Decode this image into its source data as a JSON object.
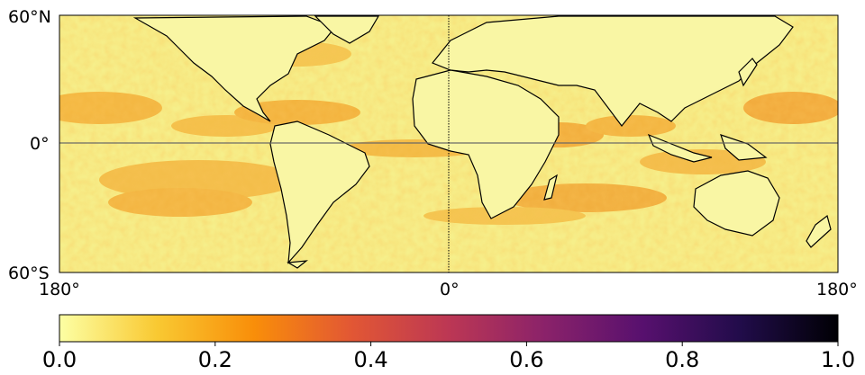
{
  "map": {
    "lat_labels": [
      "60°N",
      "0°",
      "60°S"
    ],
    "lon_labels": [
      "180°",
      "0°",
      "180°"
    ],
    "lat_range": [
      -60,
      60
    ],
    "lon_range": [
      -180,
      180
    ],
    "equator_line": true,
    "prime_meridian_line": true
  },
  "colorbar": {
    "colormap": "inferno_r",
    "range": [
      0.0,
      1.0
    ],
    "tick_labels": [
      "0.0",
      "0.2",
      "0.4",
      "0.6",
      "0.8",
      "1.0"
    ],
    "colors": [
      "#fcffa4",
      "#f9c932",
      "#f98e09",
      "#e25734",
      "#bc3754",
      "#8a226a",
      "#57106e",
      "#210c4a",
      "#000004"
    ]
  },
  "regions": {
    "field_base_color": "#f6ef8a",
    "field_high_color": "#f4a11e",
    "land_color": "#f9f6a4",
    "coast_color": "#000000"
  }
}
